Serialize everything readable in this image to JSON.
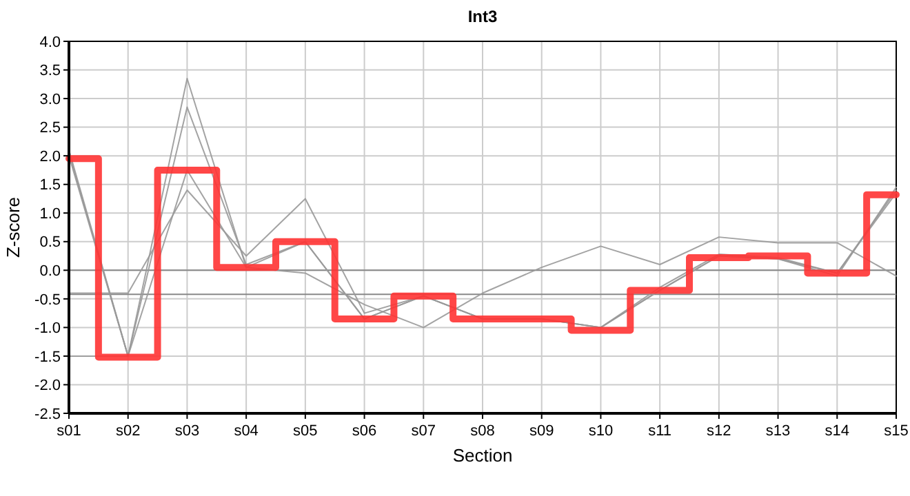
{
  "chart_data": {
    "type": "line",
    "title": "Int3",
    "xlabel": "Section",
    "ylabel": "Z-score",
    "categories": [
      "s01",
      "s02",
      "s03",
      "s04",
      "s05",
      "s06",
      "s07",
      "s08",
      "s09",
      "s10",
      "s11",
      "s12",
      "s13",
      "s14",
      "s15"
    ],
    "ylim": [
      -2.5,
      4.0
    ],
    "yticks": [
      {
        "value": -2.5,
        "label": "-2.5"
      },
      {
        "value": -2,
        "label": "-2.0"
      },
      {
        "value": -1.5,
        "label": "-1.5"
      },
      {
        "value": -1,
        "label": "-1.0"
      },
      {
        "value": -0.5,
        "label": "-0.5"
      },
      {
        "value": 0,
        "label": "0.0"
      },
      {
        "value": 0.5,
        "label": "0.5"
      },
      {
        "value": 1,
        "label": "1.0"
      },
      {
        "value": 1.5,
        "label": "1.5"
      },
      {
        "value": 2,
        "label": "2.0"
      },
      {
        "value": 2.5,
        "label": "2.5"
      },
      {
        "value": 3,
        "label": "3.0"
      },
      {
        "value": 3.5,
        "label": "3.5"
      },
      {
        "value": 4,
        "label": "4.0"
      }
    ],
    "grid": true,
    "marker": "none",
    "line_style": "solid",
    "ref_lines": [
      {
        "axis": "y",
        "value": 0,
        "color": "#888888"
      },
      {
        "axis": "y",
        "value": -0.42,
        "color": "#888888"
      }
    ],
    "series": [
      {
        "color": "#999999",
        "values": [
          2.1,
          -1.5,
          3.35,
          0.05,
          0.5,
          -0.85,
          -0.45,
          -0.85,
          -0.85,
          -1.0,
          -0.35,
          0.25,
          0.2,
          -0.1,
          1.45
        ]
      },
      {
        "color": "#999999",
        "values": [
          2.05,
          -1.5,
          2.85,
          0.1,
          0.5,
          -0.85,
          -0.45,
          -0.85,
          -0.85,
          -1.0,
          -0.3,
          0.28,
          0.22,
          -0.05,
          1.4
        ]
      },
      {
        "color": "#999999",
        "values": [
          2.0,
          -1.5,
          1.75,
          0.05,
          -0.05,
          -0.6,
          -1.0,
          -0.4,
          0.05,
          0.42,
          0.1,
          0.58,
          0.48,
          0.48,
          -0.1
        ]
      },
      {
        "color": "#999999",
        "values": [
          -0.4,
          -0.4,
          1.4,
          0.25,
          1.25,
          -0.75,
          -0.45,
          -0.85,
          -0.85,
          -1.0,
          -0.35,
          0.25,
          0.2,
          -0.05,
          1.35
        ]
      },
      {
        "color": "#999999",
        "values": [
          -1.5,
          -1.5,
          null,
          null,
          null,
          null,
          null,
          null,
          null,
          null,
          null,
          null,
          null,
          null,
          null
        ]
      },
      {
        "type": "step",
        "color": "#ff3333",
        "values": [
          1.95,
          -1.52,
          1.75,
          0.05,
          0.5,
          -0.85,
          -0.45,
          -0.85,
          -0.85,
          -1.05,
          -0.35,
          0.22,
          0.25,
          -0.05,
          1.32
        ]
      }
    ]
  }
}
